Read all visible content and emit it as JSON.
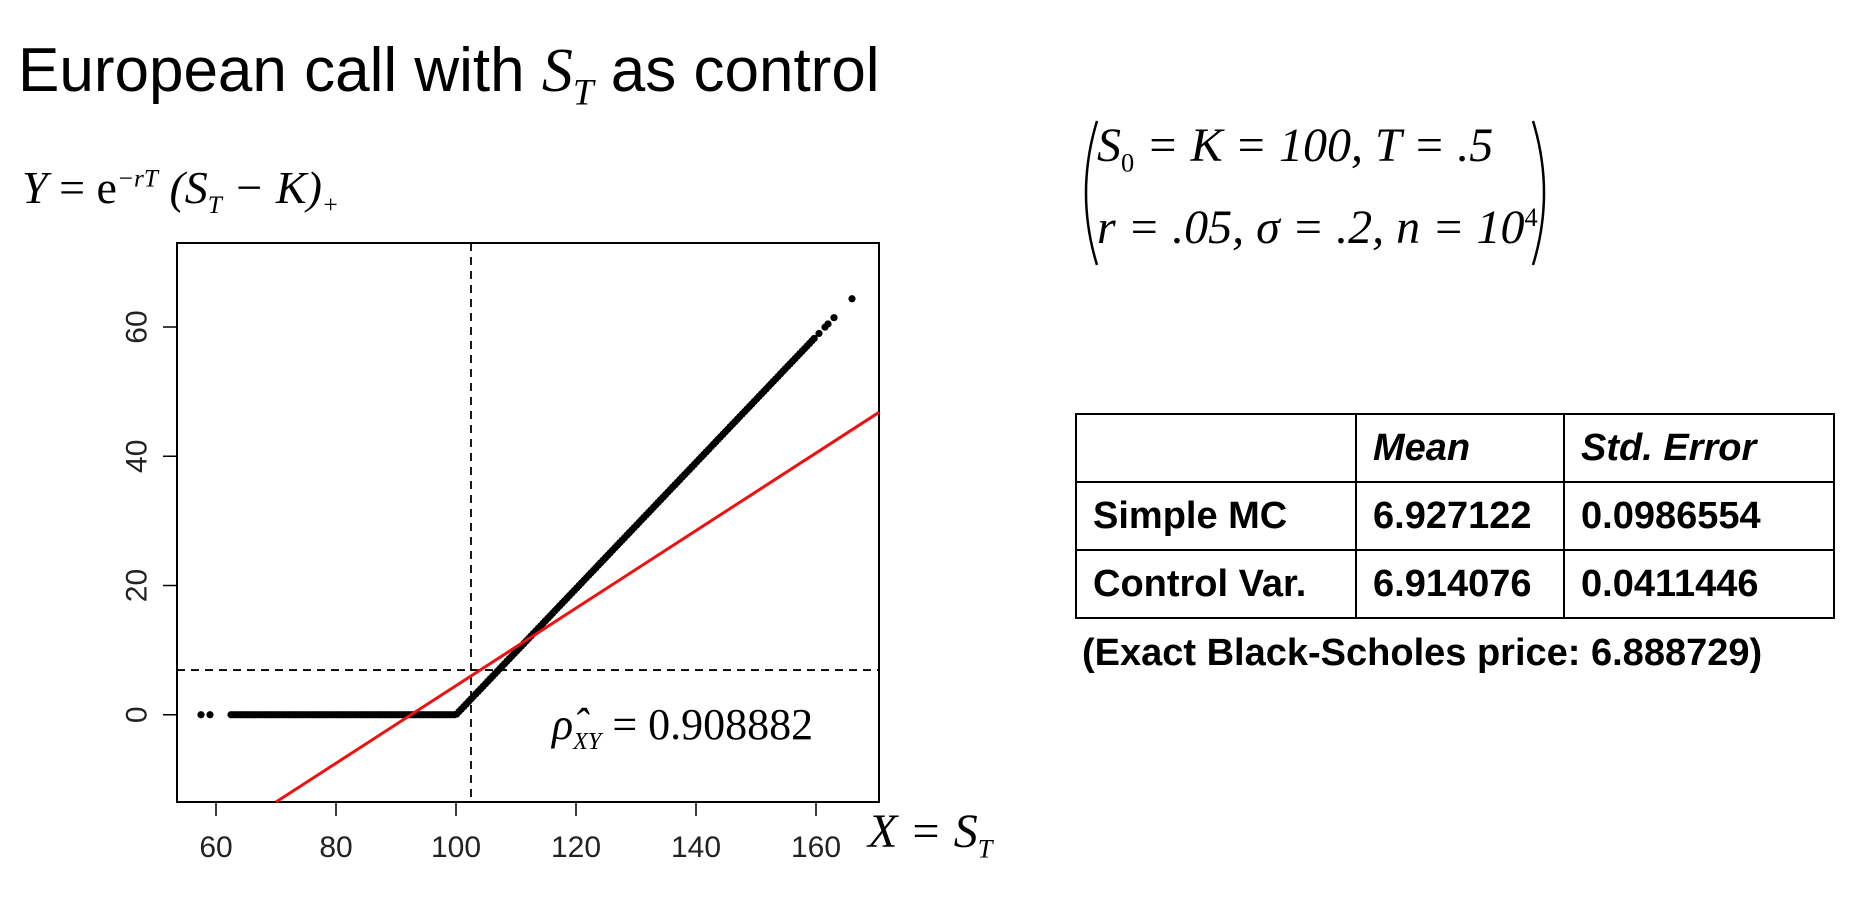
{
  "slide": {
    "title_text": "European call with ",
    "title_math_S": "S",
    "title_math_sub": "T",
    "title_suffix": " as control",
    "y_formula": {
      "lhs": "Y",
      "eq": " = e",
      "exp": "−rT",
      "paren": " (S",
      "sub": "T",
      "rest": " − K)",
      "plus": "+"
    },
    "x_formula": {
      "lhs": "X",
      "eq": " = S",
      "sub": "T"
    },
    "params": {
      "line1": {
        "S": "S",
        "S_sub": "0",
        "rest": " = K = 100, T = .5"
      },
      "line2": {
        "text": "r = .05, σ = .2, n = 10",
        "exp": "4"
      }
    },
    "results_table": {
      "headers": [
        "",
        "Mean",
        "Std. Error"
      ],
      "rows": [
        {
          "label": "Simple MC",
          "mean": "6.927122",
          "se": "0.0986554"
        },
        {
          "label": "Control Var.",
          "mean": "6.914076",
          "se": "0.0411446"
        }
      ]
    },
    "note": "(Exact Black-Scholes price: 6.888729)"
  },
  "chart_data": {
    "type": "scatter",
    "title": "",
    "xlabel": "X = S_T",
    "ylabel": "Y = e^{-rT}(S_T - K)_+",
    "xlim": [
      53.5,
      170.5
    ],
    "ylim": [
      -13.5,
      73
    ],
    "xticks": [
      60,
      80,
      100,
      120,
      140,
      160
    ],
    "yticks": [
      0,
      20,
      40,
      60
    ],
    "strike": 100,
    "discount": 0.97531,
    "x_range": [
      57.5,
      166
    ],
    "vline_x": 102.5,
    "hline_y": 6.914076,
    "regression_line": {
      "intercept": -55.5,
      "slope": 0.6,
      "color": "#ee1111"
    },
    "annotation": {
      "rho_hat": "ρ̂",
      "rho_sub": "XY",
      "value": " = 0.908882"
    },
    "grid": false
  },
  "colors": {
    "points": "#000000",
    "regression": "#ee1111",
    "frame": "#000000"
  }
}
